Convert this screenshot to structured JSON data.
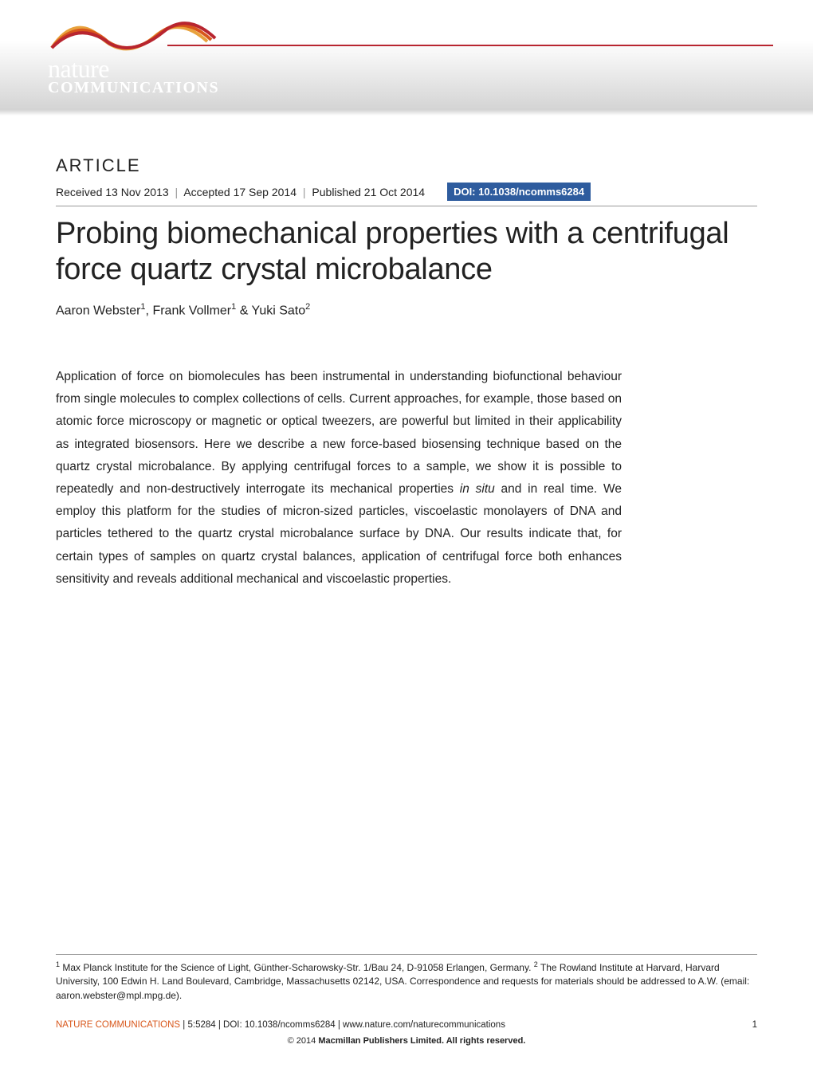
{
  "journal": {
    "name_top": "nature",
    "name_bottom": "COMMUNICATIONS",
    "swoosh_colors": [
      "#e8a23d",
      "#d8571b",
      "#b8252f"
    ],
    "banner_gradient_top": "#ffffff",
    "banner_gradient_bottom": "#d4d4d4",
    "logo_text_color": "#ffffff"
  },
  "article": {
    "label": "ARTICLE",
    "received": "Received 13 Nov 2013",
    "accepted": "Accepted 17 Sep 2014",
    "published": "Published 21 Oct 2014",
    "doi_label": "DOI: 10.1038/ncomms6284",
    "doi_bg": "#2e5c9e",
    "title": "Probing biomechanical properties with a centrifugal force quartz crystal microbalance",
    "authors_html": "Aaron Webster<sup>1</sup>, Frank Vollmer<sup>1</sup> & Yuki Sato<sup>2</sup>",
    "abstract": "Application of force on biomolecules has been instrumental in understanding biofunctional behaviour from single molecules to complex collections of cells. Current approaches, for example, those based on atomic force microscopy or magnetic or optical tweezers, are powerful but limited in their applicability as integrated biosensors. Here we describe a new force-based biosensing technique based on the quartz crystal microbalance. By applying centrifugal forces to a sample, we show it is possible to repeatedly and non-destructively interrogate its mechanical properties <em>in situ</em> and in real time. We employ this platform for the studies of micron-sized particles, viscoelastic monolayers of DNA and particles tethered to the quartz crystal microbalance surface by DNA. Our results indicate that, for certain types of samples on quartz crystal balances, application of centrifugal force both enhances sensitivity and reveals additional mechanical and viscoelastic properties."
  },
  "affiliations": "<sup>1</sup> Max Planck Institute for the Science of Light, Günther-Scharowsky-Str. 1/Bau 24, D-91058 Erlangen, Germany. <sup>2</sup> The Rowland Institute at Harvard, Harvard University, 100 Edwin H. Land Boulevard, Cambridge, Massachusetts 02142, USA. Correspondence and requests for materials should be addressed to A.W. (email: aaron.webster@mpl.mpg.de).",
  "citation": {
    "journal": "NATURE COMMUNICATIONS",
    "details": " | 5:5284 | DOI: 10.1038/ncomms6284 | www.nature.com/naturecommunications",
    "page": "1",
    "accent_color": "#d8571b"
  },
  "copyright": "© 2014 <b>Macmillan Publishers Limited. All rights reserved.</b>",
  "typography": {
    "title_fontsize": 38,
    "title_weight": 300,
    "body_fontsize": 15.5,
    "body_lineheight": 1.82,
    "label_letterspacing": 2
  }
}
